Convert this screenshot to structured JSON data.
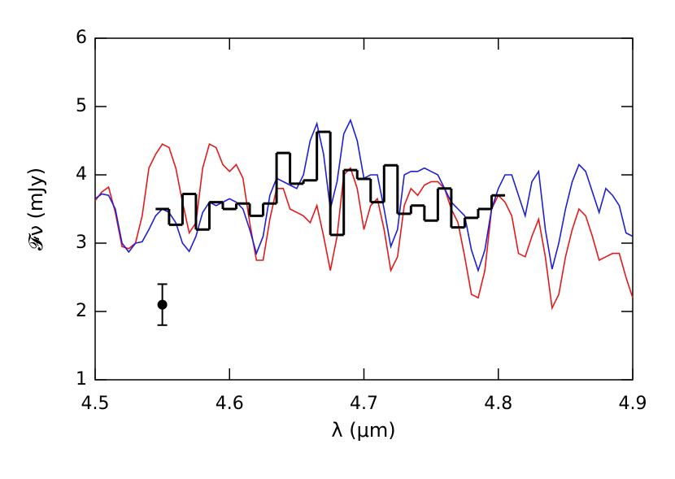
{
  "chart_data": {
    "type": "line",
    "xlabel": "λ (μm)",
    "ylabel": "𝓕ν (mJy)",
    "xlim": [
      4.5,
      4.9
    ],
    "xticks": [
      4.5,
      4.6,
      4.7,
      4.8,
      4.9
    ],
    "ylim": [
      1,
      6
    ],
    "yticks": [
      1,
      2,
      3,
      4,
      5,
      6
    ],
    "x": [
      4.5,
      4.505,
      4.51,
      4.515,
      4.52,
      4.525,
      4.53,
      4.535,
      4.54,
      4.545,
      4.55,
      4.555,
      4.56,
      4.565,
      4.57,
      4.575,
      4.58,
      4.585,
      4.59,
      4.595,
      4.6,
      4.605,
      4.61,
      4.615,
      4.62,
      4.625,
      4.63,
      4.635,
      4.64,
      4.645,
      4.65,
      4.655,
      4.66,
      4.665,
      4.67,
      4.675,
      4.68,
      4.685,
      4.69,
      4.695,
      4.7,
      4.705,
      4.71,
      4.715,
      4.72,
      4.725,
      4.73,
      4.735,
      4.74,
      4.745,
      4.75,
      4.755,
      4.76,
      4.765,
      4.77,
      4.775,
      4.78,
      4.785,
      4.79,
      4.795,
      4.8,
      4.805,
      4.81,
      4.815,
      4.82,
      4.825,
      4.83,
      4.835,
      4.84,
      4.845,
      4.85,
      4.855,
      4.86,
      4.865,
      4.87,
      4.875,
      4.88,
      4.885,
      4.89,
      4.895,
      4.9
    ],
    "series": [
      {
        "color": "#e31a1c",
        "values": [
          3.62,
          3.75,
          3.82,
          3.45,
          2.95,
          2.92,
          3.0,
          3.4,
          4.1,
          4.3,
          4.45,
          4.4,
          4.1,
          3.6,
          3.15,
          3.3,
          4.1,
          4.45,
          4.4,
          4.15,
          4.05,
          4.15,
          3.95,
          3.3,
          2.75,
          2.75,
          3.35,
          3.8,
          3.8,
          3.5,
          3.45,
          3.4,
          3.3,
          3.55,
          3.1,
          2.6,
          3.1,
          4.0,
          4.1,
          3.8,
          3.2,
          3.55,
          3.65,
          3.2,
          2.6,
          2.8,
          3.55,
          3.8,
          3.7,
          3.85,
          3.9,
          3.9,
          3.8,
          3.5,
          3.3,
          2.8,
          2.25,
          2.2,
          2.6,
          3.5,
          3.7,
          3.6,
          3.4,
          2.85,
          2.8,
          3.1,
          3.35,
          2.8,
          2.05,
          2.25,
          2.8,
          3.2,
          3.5,
          3.4,
          3.1,
          2.75,
          2.8,
          2.85,
          2.85,
          2.5,
          2.2
        ]
      },
      {
        "color": "#1f1fd6",
        "values": [
          3.65,
          3.72,
          3.7,
          3.5,
          3.0,
          2.87,
          3.0,
          3.02,
          3.2,
          3.4,
          3.5,
          3.45,
          3.3,
          3.0,
          2.88,
          3.1,
          3.45,
          3.6,
          3.55,
          3.6,
          3.65,
          3.6,
          3.5,
          3.2,
          2.85,
          3.1,
          3.7,
          3.95,
          3.9,
          3.85,
          3.8,
          4.0,
          4.5,
          4.75,
          4.3,
          3.5,
          3.9,
          4.6,
          4.8,
          4.5,
          3.95,
          4.0,
          4.0,
          3.5,
          2.95,
          3.2,
          4.0,
          4.05,
          4.05,
          4.1,
          4.05,
          4.0,
          3.8,
          3.6,
          3.5,
          3.4,
          2.9,
          2.6,
          2.9,
          3.5,
          3.8,
          4.0,
          4.0,
          3.7,
          3.4,
          3.9,
          4.05,
          3.2,
          2.62,
          3.0,
          3.5,
          3.9,
          4.15,
          4.05,
          3.75,
          3.45,
          3.8,
          3.7,
          3.55,
          3.15,
          3.1
        ]
      }
    ],
    "histogram": {
      "color": "#000000",
      "bins": [
        4.545,
        4.555,
        4.565,
        4.575,
        4.585,
        4.595,
        4.605,
        4.615,
        4.625,
        4.635,
        4.645,
        4.655,
        4.665,
        4.675,
        4.685,
        4.695,
        4.705,
        4.715,
        4.725,
        4.735,
        4.745,
        4.755,
        4.765,
        4.775,
        4.785,
        4.795,
        4.805
      ],
      "values": [
        3.5,
        3.27,
        3.72,
        3.2,
        3.6,
        3.5,
        3.58,
        3.4,
        3.58,
        4.32,
        3.87,
        3.92,
        4.63,
        3.12,
        4.07,
        3.94,
        3.6,
        4.14,
        3.43,
        3.55,
        3.33,
        3.8,
        3.23,
        3.37,
        3.5,
        3.7
      ]
    },
    "errorbar": {
      "x": 4.55,
      "y": 2.1,
      "err": 0.3,
      "color": "#000000"
    }
  }
}
